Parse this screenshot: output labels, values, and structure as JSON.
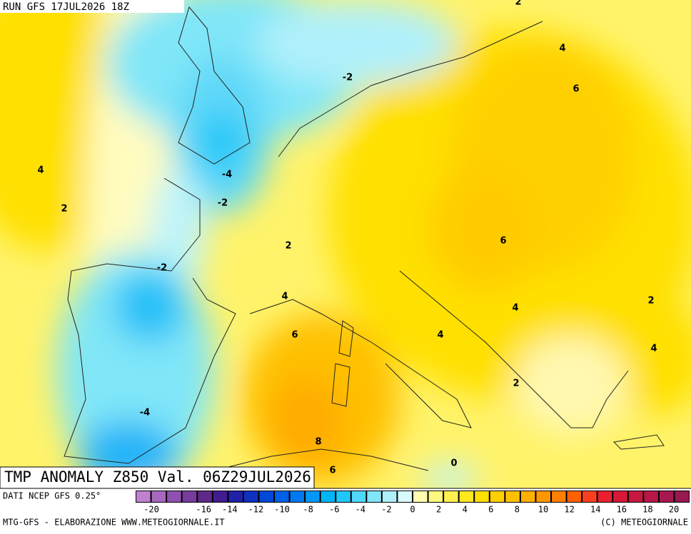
{
  "header": {
    "run": "RUN GFS 17JUL2026 18Z"
  },
  "map": {
    "title": "TMP ANOMALY Z850 Val. 06Z29JUL2026",
    "contour_labels": [
      2,
      4,
      6,
      -2,
      -4,
      -2,
      4,
      2,
      2,
      -2,
      6,
      4,
      4,
      2,
      6,
      4,
      4,
      2,
      -4,
      8,
      0,
      6
    ]
  },
  "colorbar": {
    "colors": [
      "#c080d0",
      "#a868c0",
      "#9050b0",
      "#783c9c",
      "#602888",
      "#401c90",
      "#2020a8",
      "#1030c0",
      "#0048d8",
      "#0060e8",
      "#0078f0",
      "#0098f8",
      "#00b4f8",
      "#20c8f8",
      "#50d8f8",
      "#80e6f8",
      "#b0f0fa",
      "#d8fafc",
      "#fffcb0",
      "#fff880",
      "#fff050",
      "#ffe820",
      "#ffe000",
      "#ffd000",
      "#ffc000",
      "#ffb000",
      "#ff9800",
      "#ff8000",
      "#ff6000",
      "#f84020",
      "#e82030",
      "#d81838",
      "#c81840",
      "#b81848",
      "#a81850",
      "#981850"
    ],
    "ticks": [
      -20,
      -16,
      -14,
      -12,
      -10,
      -8,
      -6,
      -4,
      -2,
      0,
      2,
      4,
      6,
      8,
      10,
      12,
      14,
      16,
      18,
      20
    ]
  },
  "footer": {
    "source": "DATI NCEP GFS 0.25°",
    "credit": "MTG-GFS - ELABORAZIONE WWW.METEOGIORNALE.IT",
    "copyright": "(C) METEOGIORNALE"
  }
}
